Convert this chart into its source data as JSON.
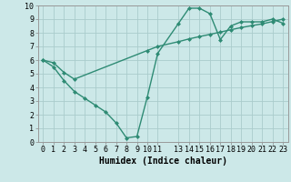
{
  "line1_x": [
    0,
    1,
    2,
    3,
    4,
    5,
    6,
    7,
    8,
    9,
    10,
    11,
    13,
    14,
    15,
    16,
    17,
    18,
    19,
    20,
    21,
    22,
    23
  ],
  "line1_y": [
    6.0,
    5.5,
    4.5,
    3.7,
    3.2,
    2.7,
    2.2,
    1.4,
    0.3,
    0.4,
    3.3,
    6.5,
    8.7,
    9.8,
    9.8,
    9.4,
    7.5,
    8.5,
    8.8,
    8.8,
    8.8,
    9.0,
    8.7
  ],
  "line2_x": [
    0,
    1,
    2,
    3,
    10,
    11,
    13,
    14,
    15,
    16,
    17,
    18,
    19,
    20,
    21,
    22,
    23
  ],
  "line2_y": [
    6.0,
    5.8,
    5.1,
    4.6,
    6.7,
    7.0,
    7.35,
    7.55,
    7.72,
    7.88,
    8.05,
    8.22,
    8.38,
    8.52,
    8.65,
    8.82,
    9.0
  ],
  "color": "#2e8b74",
  "bg_color": "#cce8e8",
  "grid_color": "#aacccc",
  "xlabel": "Humidex (Indice chaleur)",
  "xlim": [
    -0.5,
    23.5
  ],
  "ylim": [
    0,
    10
  ],
  "xticks": [
    0,
    1,
    2,
    3,
    4,
    5,
    6,
    7,
    8,
    9,
    10,
    11,
    13,
    14,
    15,
    16,
    17,
    18,
    19,
    20,
    21,
    22,
    23
  ],
  "yticks": [
    0,
    1,
    2,
    3,
    4,
    5,
    6,
    7,
    8,
    9,
    10
  ],
  "tick_fontsize": 6.0,
  "xlabel_fontsize": 7.0,
  "marker": "D",
  "markersize": 2.0,
  "linewidth": 1.0
}
